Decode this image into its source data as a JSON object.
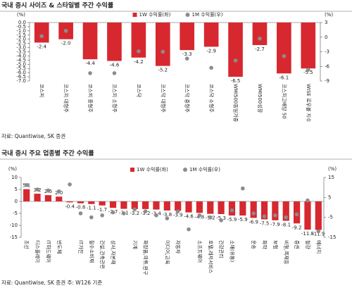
{
  "chart_data": [
    {
      "type": "bar",
      "title": "국내 증시 사이즈 & 스타일별 주간 수익률",
      "y_label": "(%)",
      "y2_label": "(%)",
      "categories": [
        "코스피",
        "코스피 대형주",
        "코스피 중형주",
        "코스피 소형주",
        "코스닥",
        "코스닥 대형주",
        "코스닥 중형주",
        "코스닥 소형주",
        "WMI500동일가중",
        "WMI500성장",
        "코스피고배당 50",
        "WISE 로우볼 지수"
      ],
      "series": [
        {
          "name": "1W 수익률(좌)",
          "type": "bar",
          "color": "#d7282f",
          "values": [
            -2.4,
            -2.0,
            -4.4,
            -4.6,
            -4.2,
            -5.2,
            -3.3,
            -2.9,
            -6.5,
            -2.7,
            -6.1,
            -5.5
          ],
          "value_labels": [
            "-2.4",
            "-2.0",
            "-4.4",
            "-4.6",
            "-4.2",
            "-5.2",
            "-3.3",
            "-2.9",
            "-6.5",
            "-2.7",
            "-6.1",
            "-5.5"
          ]
        },
        {
          "name": "1M 수익률(우)",
          "type": "dot",
          "color": "#8c8c8c",
          "axis": "y2",
          "values": [
            0.2,
            1.3,
            -7.4,
            -7.4,
            -2.9,
            -3.0,
            -4.4,
            -6.3,
            -4.8,
            -0.3,
            -3.9,
            -6.7
          ]
        }
      ],
      "ylim": [
        -7,
        0
      ],
      "yticks": [
        {
          "value": 0,
          "label": "0.0"
        },
        {
          "value": -0.5,
          "label": "-0.5"
        },
        {
          "value": -1,
          "label": "-1.0"
        },
        {
          "value": -1.5,
          "label": "-1.5"
        },
        {
          "value": -2,
          "label": "-2.0"
        },
        {
          "value": -2.5,
          "label": "-2.5"
        },
        {
          "value": -3,
          "label": "-3.0"
        },
        {
          "value": -3.5,
          "label": "-3.5"
        },
        {
          "value": -4,
          "label": "-4.0"
        },
        {
          "value": -4.5,
          "label": "-4.5"
        },
        {
          "value": -5,
          "label": "-5.0"
        },
        {
          "value": -5.5,
          "label": "-5.5"
        },
        {
          "value": -6,
          "label": "-6.0"
        },
        {
          "value": -6.5,
          "label": "-6.5"
        },
        {
          "value": -7,
          "label": "-7.0"
        }
      ],
      "y2lim": [
        -9,
        3
      ],
      "y2ticks": [
        3,
        0,
        -3,
        -6,
        -9
      ],
      "source": "자료: Quantiwise, SK 증권"
    },
    {
      "type": "bar",
      "title": "국내 증시 주요 업종별 주간 수익률",
      "y_label": "(%)",
      "y2_label": "(%)",
      "categories": [
        "조선",
        "디스플레이",
        "IT하드웨어",
        "반도체",
        null,
        "IT가전",
        "필수소비재",
        "건설,건축관련",
        "상사,자본재",
        null,
        "기계",
        "화장품,의류,완구",
        null,
        "미디어,교육",
        "자동차",
        null,
        "소프트웨어",
        "호텔,레저서비스",
        "건강관리",
        "소매(유통)",
        null,
        "운송",
        "화학",
        "보험",
        "비철,목재등",
        "증권",
        "철강",
        "에너지"
      ],
      "series": [
        {
          "name": "1W 수익률(좌)",
          "type": "bar",
          "color": "#d7282f",
          "values": [
            5.1,
            3.2,
            2.6,
            2.0,
            -0.4,
            -0.8,
            -1.1,
            -1.7,
            -2.7,
            -3.1,
            -3.2,
            -3.2,
            -3.4,
            -3.8,
            -3.9,
            -4.6,
            -4.8,
            -5.2,
            -5.3,
            -5.9,
            -5.9,
            -6.9,
            -7.5,
            -7.9,
            -8.1,
            -9.2,
            -11.8,
            -11.9
          ],
          "value_labels": [
            "5.1",
            "3.2",
            "2.6",
            "2.0",
            "-0.4",
            "-0.8",
            "-1.1",
            "-1.7",
            "-2.7",
            "-3.1",
            "-3.2",
            "-3.2",
            "-3.4",
            "-3.8",
            "-3.9",
            "-4.6",
            "-4.8",
            "-5.2",
            "-5.3",
            "-5.9",
            "-5.9",
            "-6.9",
            "-7.5",
            "-7.9",
            "-8.1",
            "-9.2",
            "-11.8",
            "-11.9"
          ]
        },
        {
          "name": "1M 수익률(우)",
          "type": "dot",
          "color": "#8c8c8c",
          "axis": "y2",
          "values": [
            11.2,
            9.0,
            8.5,
            8.0,
            11.5,
            -3.0,
            -5.0,
            -4.0,
            -2.5,
            -3.0,
            -1.0,
            -2.0,
            -4.0,
            -5.5,
            -2.0,
            -11.0,
            -4.0,
            -5.0,
            -6.5,
            -1.5,
            9.5,
            -3.0,
            -4.5,
            -4.0,
            -5.0,
            -3.5,
            3.5,
            -12.0
          ]
        }
      ],
      "ylim": [
        -15,
        10
      ],
      "yticks": [
        10,
        5,
        0,
        -5,
        -10,
        -15
      ],
      "y2lim": [
        -15,
        15
      ],
      "y2ticks": [
        15,
        5,
        -5,
        -15
      ],
      "source": "자료: Quantiwise, SK 증권 주: W126 기준"
    }
  ]
}
